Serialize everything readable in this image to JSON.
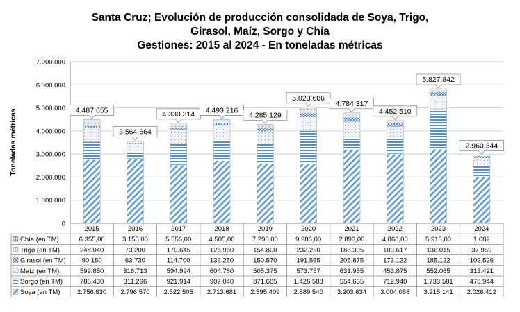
{
  "chart_data": {
    "type": "bar",
    "stacked": true,
    "title": [
      "Santa Cruz; Evolución de producción consolidada de Soya, Trigo,",
      "Girasol, Maíz, Sorgo y Chía",
      "Gestiones: 2015 al 2024 - En toneladas métricas"
    ],
    "ylabel": "Toneladas métricas",
    "ylim": [
      0,
      7000000
    ],
    "yticks": [
      "0",
      "1.000.000",
      "2.000.000",
      "3.000.000",
      "4.000.000",
      "5.000.000",
      "6.000.000",
      "7.000.000"
    ],
    "grid": true,
    "categories": [
      "2015",
      "2016",
      "2017",
      "2018",
      "2019",
      "2020",
      "2021",
      "2022",
      "2023",
      "2024"
    ],
    "totals": [
      4487655,
      3564664,
      4330314,
      4493216,
      4285129,
      5023686,
      4784317,
      4452510,
      5827842,
      2960344
    ],
    "total_labels": [
      "4.487.655",
      "3.564.664",
      "4.330.314",
      "4.493.216",
      "4.285.129",
      "5.023.686",
      "4.784.317",
      "4.452.510",
      "5.827.842",
      "2.960.344"
    ],
    "series": [
      {
        "name": "Chía (en TM)",
        "color": "#4a86c8",
        "values": [
          6355,
          3155,
          5556,
          4505,
          7290,
          9986,
          2893,
          4868,
          5918,
          1082
        ],
        "labels": [
          "6.355,00",
          "3.155,00",
          "5.556,00",
          "4.505,00",
          "7.290,00",
          "9.986,00",
          "2.893,00",
          "4.868,00",
          "5.918,00",
          "1.082"
        ]
      },
      {
        "name": "Trigo (en TM)",
        "color": "#8a9ab0",
        "values": [
          248040,
          73200,
          170645,
          126960,
          154800,
          232250,
          185305,
          103617,
          136015,
          37959
        ],
        "labels": [
          "248.040",
          "73.200",
          "170.645",
          "126.960",
          "154.800",
          "232.250",
          "185.305",
          "103.617",
          "136.015",
          "37.959"
        ]
      },
      {
        "name": "Girasol (en TM)",
        "color": "#4a86c8",
        "values": [
          90150,
          63730,
          114700,
          136250,
          150570,
          191565,
          205875,
          173122,
          185122,
          102526
        ],
        "labels": [
          "90.150",
          "63.730",
          "114.700",
          "136.250",
          "150.570",
          "191.565",
          "205.875",
          "173.122",
          "185.122",
          "102.526"
        ]
      },
      {
        "name": "Maíz (en TM)",
        "color": "#9aa0aa",
        "values": [
          599850,
          316713,
          594994,
          604780,
          505375,
          573757,
          631955,
          453875,
          552065,
          313421
        ],
        "labels": [
          "599.850",
          "316.713",
          "594.994",
          "604.780",
          "505.375",
          "573.757",
          "631.955",
          "453.875",
          "552.065",
          "313.421"
        ]
      },
      {
        "name": "Sorgo (en TM)",
        "color": "#4f8fd6",
        "values": [
          786430,
          311296,
          921914,
          907040,
          871685,
          1426588,
          554655,
          712940,
          1733581,
          478944
        ],
        "labels": [
          "786.430",
          "311.296",
          "921.914",
          "907.040",
          "871.685",
          "1.426.588",
          "554.655",
          "712.940",
          "1.733.581",
          "478.944"
        ]
      },
      {
        "name": "Soya (en TM)",
        "color": "#5b9be0",
        "values": [
          2756830,
          2796570,
          2522505,
          2713681,
          2595409,
          2589540,
          3203634,
          3004088,
          3215141,
          2026412
        ],
        "labels": [
          "2.756.830",
          "2.796.570",
          "2.522.505",
          "2.713.681",
          "2.595.409",
          "2.589.540",
          "3.203.634",
          "3.004.088",
          "3.215.141",
          "2.026.412"
        ]
      }
    ]
  }
}
